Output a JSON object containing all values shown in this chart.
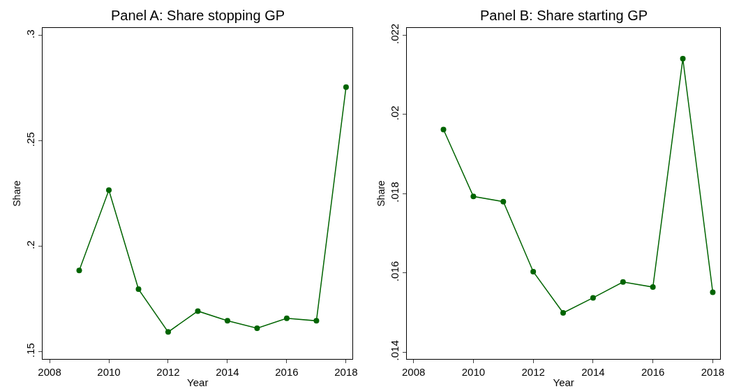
{
  "chart_data": [
    {
      "type": "line",
      "title": "Panel A: Share stopping GP",
      "xlabel": "Year",
      "ylabel": "Share",
      "marker": "circle",
      "line_style": "solid",
      "x": [
        2009,
        2010,
        2011,
        2012,
        2013,
        2014,
        2015,
        2016,
        2017,
        2018
      ],
      "series": [
        {
          "color": "#006400",
          "values": [
            0.1886,
            0.2267,
            0.1797,
            0.1594,
            0.1693,
            0.1647,
            0.1612,
            0.1659,
            0.1647,
            0.2756
          ]
        }
      ],
      "xlim": [
        2007.77,
        2018.22
      ],
      "xticks": [
        2008,
        2010,
        2012,
        2014,
        2016,
        2018
      ],
      "ylim": [
        0.1467,
        0.3035
      ],
      "yticks": [
        {
          "value": 0.15,
          "label": ".15"
        },
        {
          "value": 0.2,
          "label": ".2"
        },
        {
          "value": 0.25,
          "label": ".25"
        },
        {
          "value": 0.3,
          "label": ".3"
        }
      ]
    },
    {
      "type": "line",
      "title": "Panel B: Share starting GP",
      "xlabel": "Year",
      "ylabel": "Share",
      "marker": "circle",
      "line_style": "solid",
      "x": [
        2009,
        2010,
        2011,
        2012,
        2013,
        2014,
        2015,
        2016,
        2017,
        2018
      ],
      "series": [
        {
          "color": "#006400",
          "values": [
            0.01962,
            0.01793,
            0.0178,
            0.01603,
            0.01499,
            0.01537,
            0.01577,
            0.01564,
            0.02141,
            0.01551
          ]
        }
      ],
      "xlim": [
        2007.78,
        2018.25
      ],
      "xticks": [
        2008,
        2010,
        2012,
        2014,
        2016,
        2018
      ],
      "ylim": [
        0.01383,
        0.02218
      ],
      "yticks": [
        {
          "value": 0.014,
          "label": ".014"
        },
        {
          "value": 0.016,
          "label": ".016"
        },
        {
          "value": 0.018,
          "label": ".018"
        },
        {
          "value": 0.02,
          "label": ".02"
        },
        {
          "value": 0.022,
          "label": ".022"
        }
      ]
    }
  ]
}
